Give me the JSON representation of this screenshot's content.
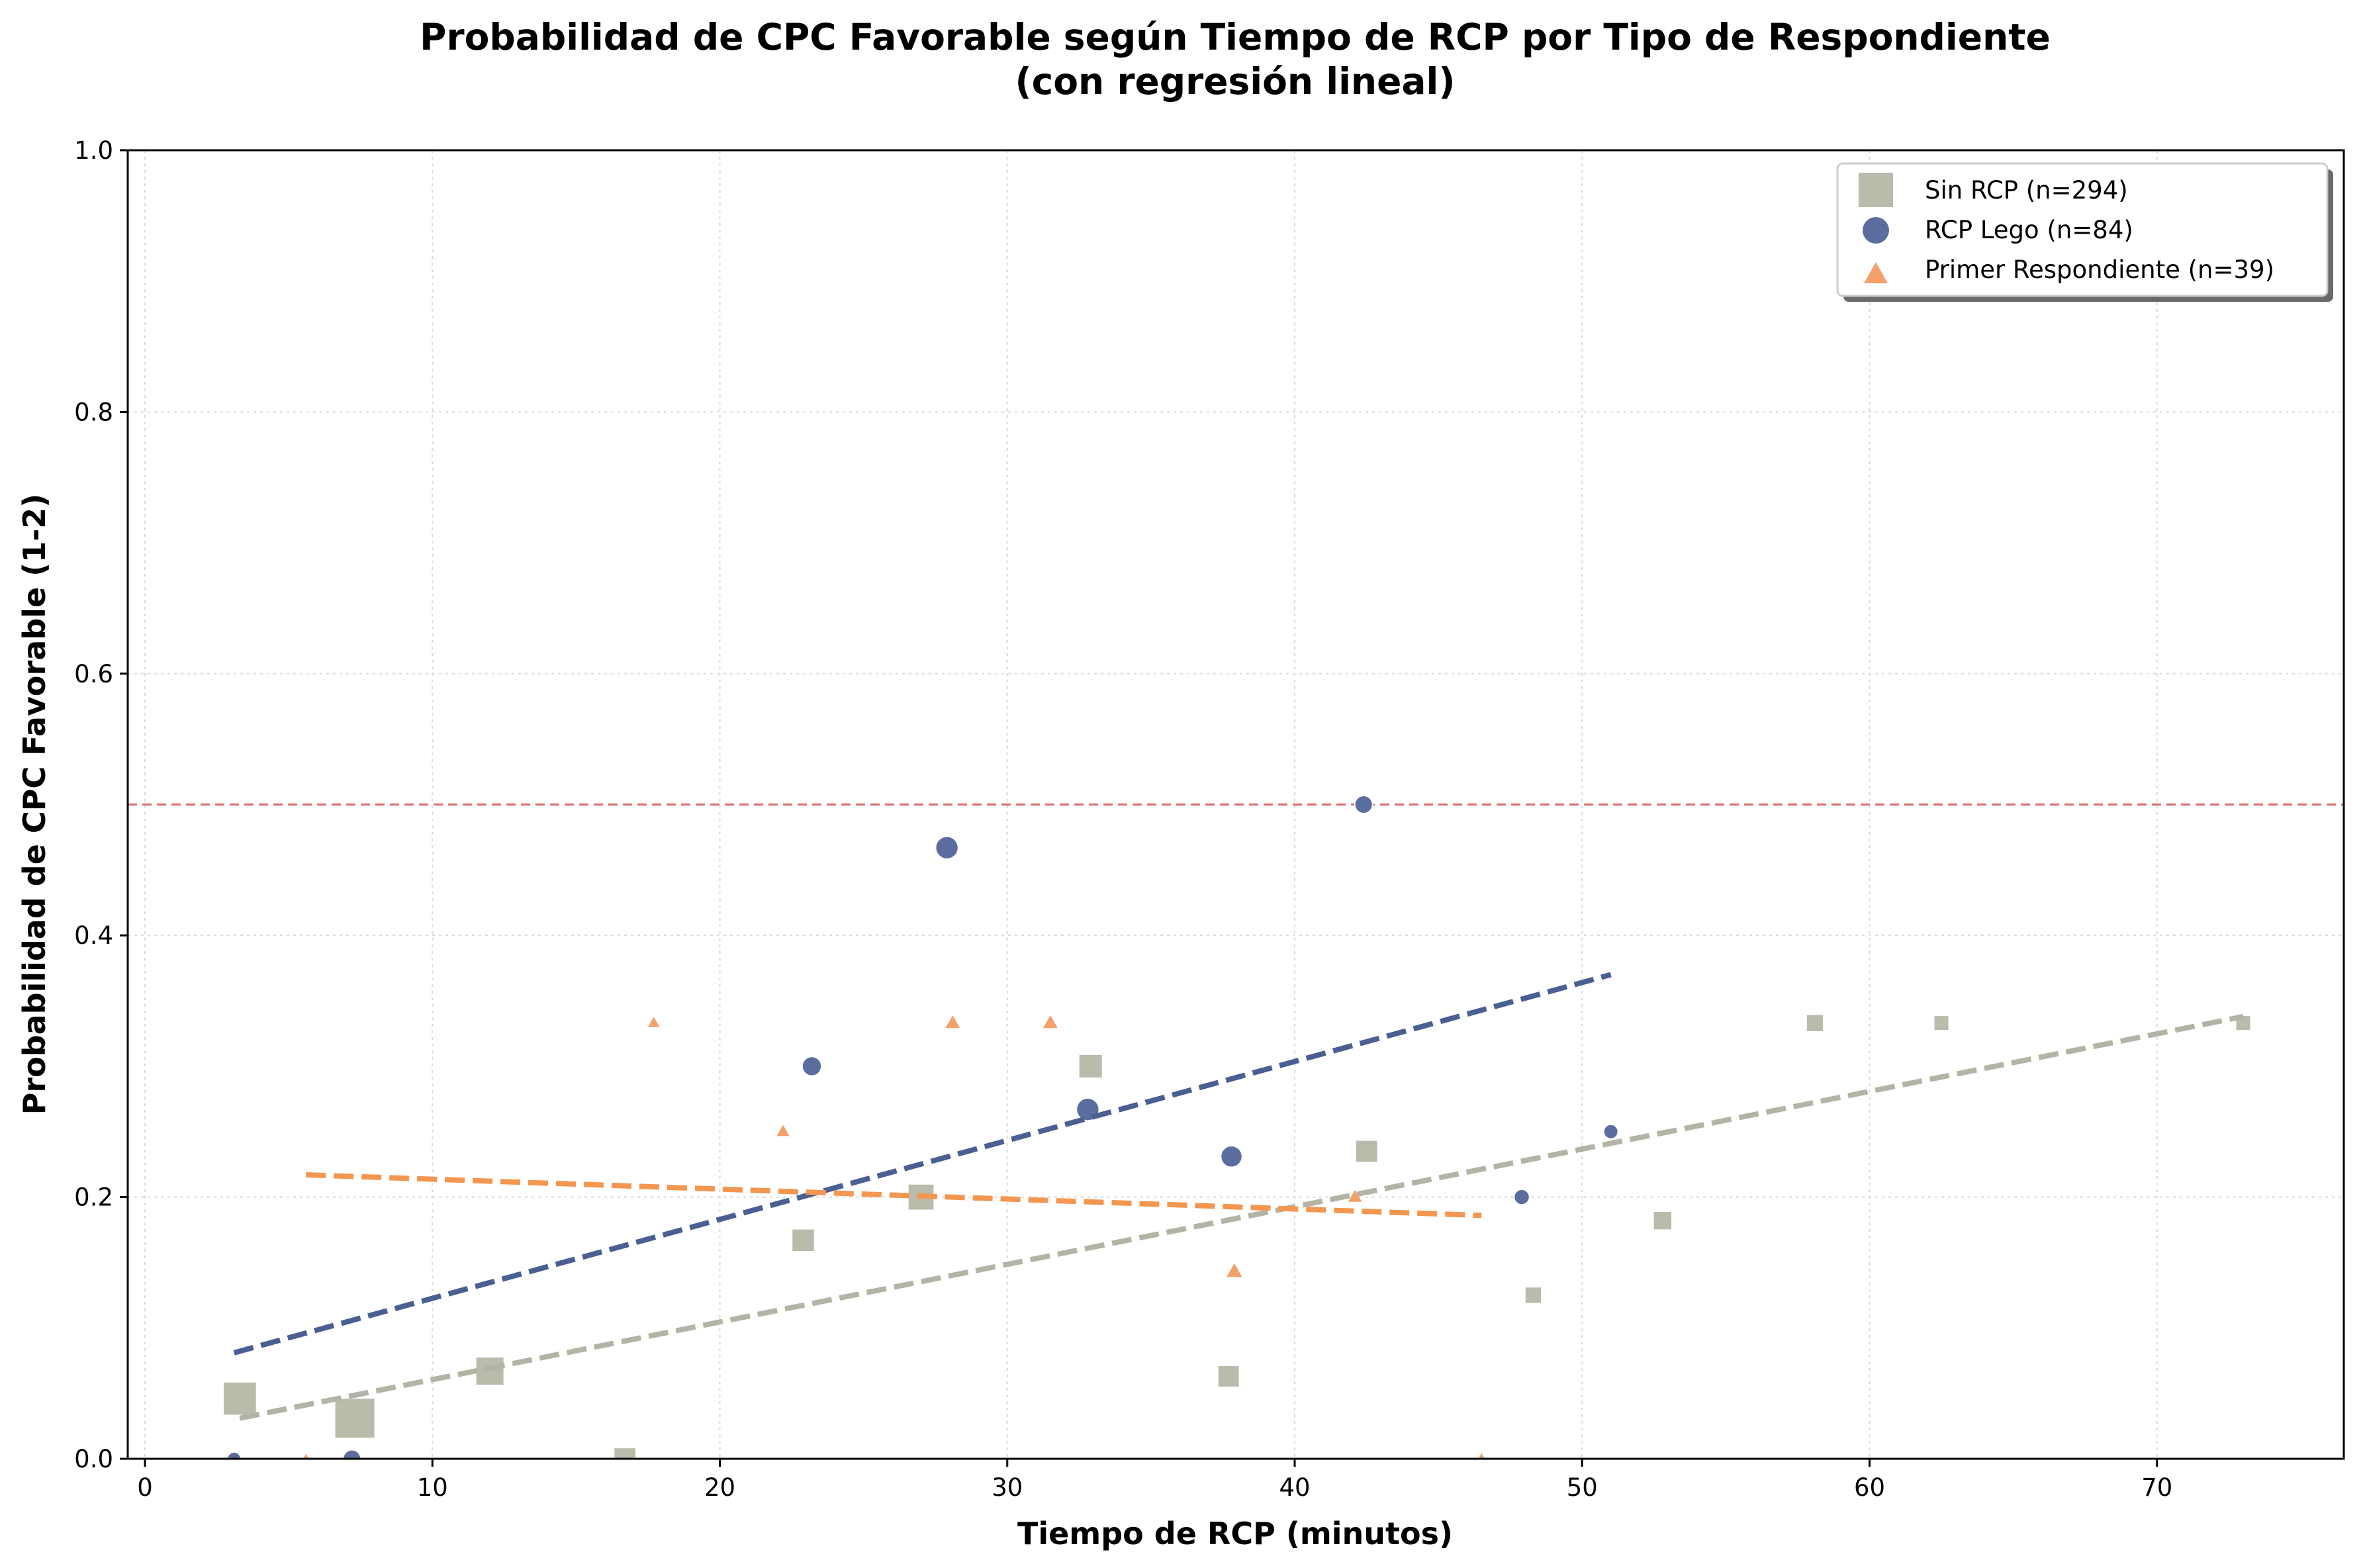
{
  "chart_data": {
    "type": "scatter",
    "title": "Probabilidad de CPC Favorable según Tiempo de RCP por Tipo de Respondiente",
    "subtitle": "(con regresión lineal)",
    "xlabel": "Tiempo de RCP (minutos)",
    "ylabel": "Probabilidad de CPC Favorable (1-2)",
    "xlim": [
      -0.6,
      76.5
    ],
    "ylim": [
      0,
      1.0
    ],
    "xticks": [
      0,
      10,
      20,
      30,
      40,
      50,
      60,
      70
    ],
    "yticks": [
      0.0,
      0.2,
      0.4,
      0.6,
      0.8,
      1.0
    ],
    "ytick_labels": [
      "0.0",
      "0.2",
      "0.4",
      "0.6",
      "0.8",
      "1.0"
    ],
    "grid": true,
    "legend_position": "top-right",
    "reference_line": {
      "y": 0.5,
      "color": "#e06666",
      "style": "dashed"
    },
    "series": [
      {
        "name": "Sin RCP (n=294)",
        "marker": "square",
        "color": "#babbab",
        "points": [
          {
            "x": 3.3,
            "y": 0.046,
            "n": 43
          },
          {
            "x": 7.3,
            "y": 0.031,
            "n": 64
          },
          {
            "x": 12.0,
            "y": 0.067,
            "n": 30
          },
          {
            "x": 16.7,
            "y": 0.0,
            "n": 17
          },
          {
            "x": 22.9,
            "y": 0.167,
            "n": 18
          },
          {
            "x": 27.0,
            "y": 0.2,
            "n": 25
          },
          {
            "x": 32.9,
            "y": 0.3,
            "n": 20
          },
          {
            "x": 37.7,
            "y": 0.063,
            "n": 16
          },
          {
            "x": 42.5,
            "y": 0.235,
            "n": 17
          },
          {
            "x": 48.3,
            "y": 0.125,
            "n": 8
          },
          {
            "x": 52.8,
            "y": 0.182,
            "n": 11
          },
          {
            "x": 58.1,
            "y": 0.333,
            "n": 9
          },
          {
            "x": 62.5,
            "y": 0.333,
            "n": 6
          },
          {
            "x": 73.0,
            "y": 0.333,
            "n": 6
          }
        ],
        "regression": {
          "x": [
            3.3,
            73.0
          ],
          "y": [
            0.031,
            0.338
          ]
        }
      },
      {
        "name": "RCP Lego (n=84)",
        "marker": "circle",
        "color": "#5a6d9e",
        "points": [
          {
            "x": 3.1,
            "y": 0.0,
            "n": 3
          },
          {
            "x": 7.2,
            "y": 0.0,
            "n": 8
          },
          {
            "x": 23.2,
            "y": 0.3,
            "n": 10
          },
          {
            "x": 27.9,
            "y": 0.467,
            "n": 15
          },
          {
            "x": 32.8,
            "y": 0.267,
            "n": 15
          },
          {
            "x": 37.8,
            "y": 0.231,
            "n": 13
          },
          {
            "x": 42.4,
            "y": 0.5,
            "n": 8
          },
          {
            "x": 47.9,
            "y": 0.2,
            "n": 5
          },
          {
            "x": 51.0,
            "y": 0.25,
            "n": 4
          }
        ],
        "regression": {
          "x": [
            3.1,
            51.0
          ],
          "y": [
            0.081,
            0.37
          ]
        }
      },
      {
        "name": "Primer Respondiente (n=39)",
        "marker": "triangle",
        "color": "#f4a06a",
        "points": [
          {
            "x": 5.6,
            "y": 0.0,
            "n": 1
          },
          {
            "x": 17.7,
            "y": 0.333,
            "n": 3
          },
          {
            "x": 22.2,
            "y": 0.25,
            "n": 4
          },
          {
            "x": 28.1,
            "y": 0.333,
            "n": 6
          },
          {
            "x": 31.5,
            "y": 0.333,
            "n": 6
          },
          {
            "x": 37.9,
            "y": 0.143,
            "n": 7
          },
          {
            "x": 42.1,
            "y": 0.2,
            "n": 5
          },
          {
            "x": 46.5,
            "y": 0.0,
            "n": 2
          }
        ],
        "regression": {
          "x": [
            5.6,
            46.5
          ],
          "y": [
            0.217,
            0.186
          ]
        }
      }
    ]
  },
  "colors": {
    "sin_rcp_line": "#b3b4a5",
    "rcp_lego_line": "#4a5f92",
    "primer_line": "#f39650"
  }
}
